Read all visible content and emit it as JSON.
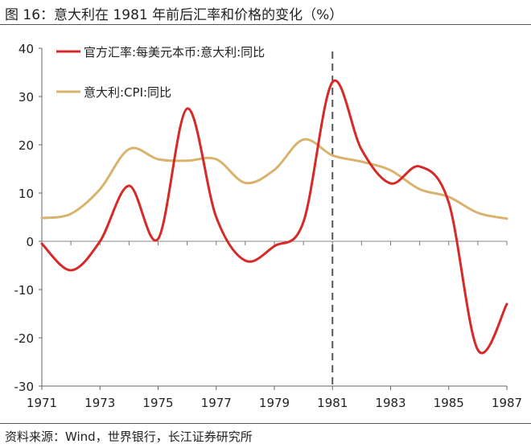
{
  "title": "图 16：意大利在 1981 年前后汇率和价格的变化（%）",
  "source": "资料来源：Wind，世界银行，长江证券研究所",
  "chart_data": {
    "type": "line",
    "title": "图 16：意大利在 1981 年前后汇率和价格的变化（%）",
    "xlabel": "",
    "ylabel": "",
    "xlim": [
      1971,
      1987
    ],
    "ylim": [
      -30,
      40
    ],
    "x_ticks": [
      "1971",
      "1973",
      "1975",
      "1977",
      "1979",
      "1981",
      "1983",
      "1985",
      "1987"
    ],
    "y_ticks": [
      "40",
      "30",
      "20",
      "10",
      "0",
      "-10",
      "-20",
      "-30"
    ],
    "legend_position": "top-left",
    "reference_line": {
      "x": 1981,
      "style": "dashed"
    },
    "grid": false,
    "series": [
      {
        "name": "官方汇率:每美元本币:意大利:同比",
        "color": "#d62a28",
        "x": [
          1971,
          1972,
          1973,
          1974,
          1975,
          1976,
          1977,
          1978,
          1979,
          1980,
          1981,
          1982,
          1983,
          1984,
          1985,
          1986,
          1987
        ],
        "y": [
          -0.5,
          -6,
          0,
          11.5,
          0.5,
          27.5,
          5,
          -4,
          -1,
          4,
          33,
          19,
          12,
          15.5,
          8,
          -22.5,
          -13
        ]
      },
      {
        "name": "意大利:CPI:同比",
        "color": "#d9b36e",
        "x": [
          1971,
          1972,
          1973,
          1974,
          1975,
          1976,
          1977,
          1978,
          1979,
          1980,
          1981,
          1982,
          1983,
          1984,
          1985,
          1986,
          1987
        ],
        "y": [
          4.8,
          5.7,
          10.8,
          19.1,
          17,
          16.7,
          17,
          12.1,
          14.8,
          21.1,
          17.8,
          16.5,
          14.7,
          10.8,
          9.2,
          5.9,
          4.7
        ]
      }
    ]
  }
}
